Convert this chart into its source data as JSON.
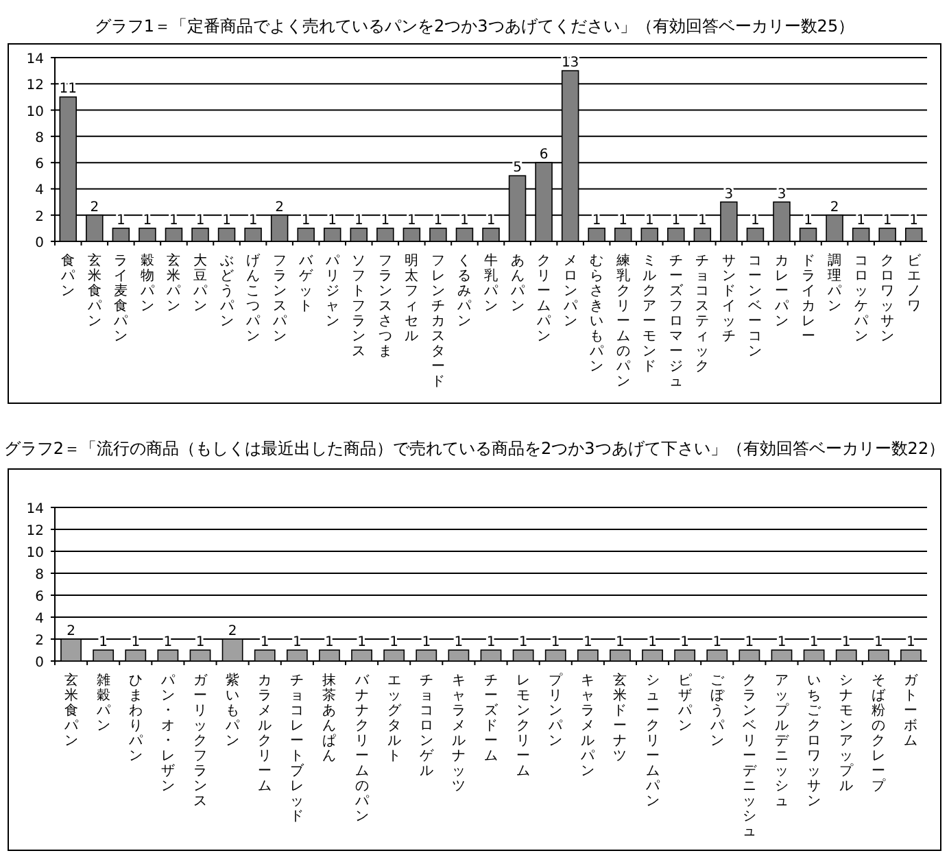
{
  "chart_data": [
    {
      "type": "bar",
      "title": "グラフ1＝「定番商品でよく売れているパンを2つか3つあげてください」（有効回答ベーカリー数25）",
      "categories": [
        "食パン",
        "玄米食パン",
        "ライ麦食パン",
        "穀物パン",
        "玄米パン",
        "大豆パン",
        "ぶどうパン",
        "げんこつパン",
        "フランスパン",
        "バゲット",
        "パリジャン",
        "ソフトフランス",
        "フランスさつま",
        "明太フィセル",
        "フレンチカスタード",
        "くるみパン",
        "牛乳パン",
        "あんパン",
        "クリームパン",
        "メロンパン",
        "むらさきいもパン",
        "練乳クリームのパン",
        "ミルクアーモンド",
        "チーズフロマージュ",
        "チョコスティック",
        "サンドイッチ",
        "コーンベーコン",
        "カレーパン",
        "ドライカレー",
        "調理パン",
        "コロッケパン",
        "クロワッサン",
        "ビエノワ"
      ],
      "values": [
        11,
        2,
        1,
        1,
        1,
        1,
        1,
        1,
        2,
        1,
        1,
        1,
        1,
        1,
        1,
        1,
        1,
        5,
        6,
        13,
        1,
        1,
        1,
        1,
        1,
        3,
        1,
        3,
        1,
        2,
        1,
        1,
        1
      ],
      "color": "#808080",
      "ylim": [
        0,
        14
      ],
      "yticks": [
        0,
        2,
        4,
        6,
        8,
        10,
        12,
        14
      ],
      "grid": "y",
      "data_labels": true
    },
    {
      "type": "bar",
      "title": "グラフ2＝「流行の商品（もしくは最近出した商品）で売れている商品を2つか3つあげて下さい」（有効回答ベーカリー数22）",
      "categories": [
        "玄米食パン",
        "雑穀パン",
        "ひまわりパン",
        "パン・オ・レザン",
        "ガーリックフランス",
        "紫いもパン",
        "カラメルクリーム",
        "チョコレートブレッド",
        "抹茶あんぱん",
        "バナナクリームのパン",
        "エッグタルト",
        "チョコロンゲル",
        "キャラメルナッツ",
        "チーズドーム",
        "レモンクリーム",
        "プリンパン",
        "キャラメルパン",
        "玄米ドーナツ",
        "シュークリームパン",
        "ピザパン",
        "ごぼうパン",
        "クランベリーデニッシュ",
        "アップルデニッシュ",
        "いちごクロワッサン",
        "シナモンアップル",
        "そば粉のクレープ",
        "ガトーボム"
      ],
      "values": [
        2,
        1,
        1,
        1,
        1,
        2,
        1,
        1,
        1,
        1,
        1,
        1,
        1,
        1,
        1,
        1,
        1,
        1,
        1,
        1,
        1,
        1,
        1,
        1,
        1,
        1,
        1
      ],
      "color": "#a0a0a0",
      "ylim": [
        0,
        14
      ],
      "yticks": [
        0,
        2,
        4,
        6,
        8,
        10,
        12,
        14
      ],
      "grid": "y",
      "data_labels": true
    }
  ]
}
